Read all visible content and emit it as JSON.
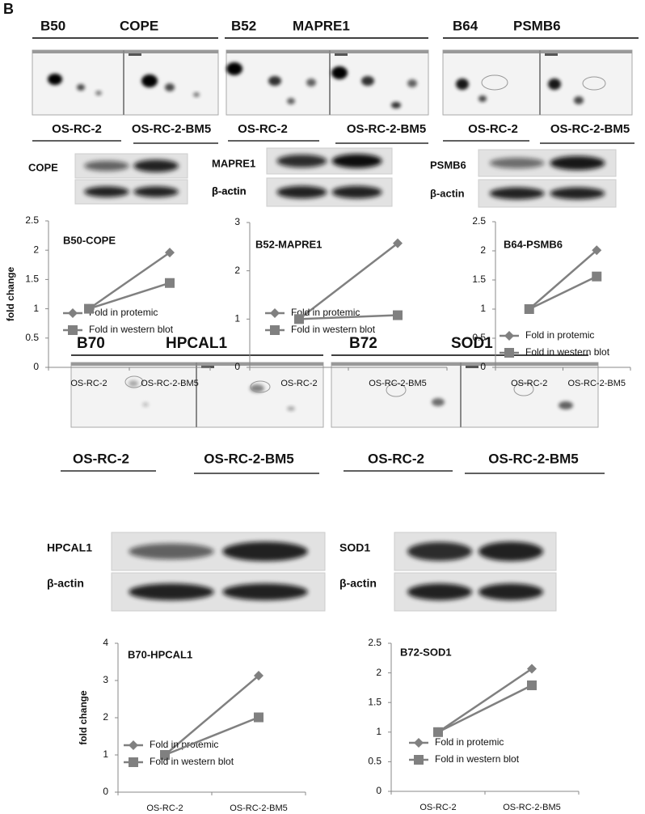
{
  "panel_label": "B",
  "panels": [
    {
      "spot": "B50",
      "protein": "COPE",
      "lanes": [
        "OS-RC-2",
        "OS-RC-2-BM5"
      ],
      "blot_labels": [
        "COPE",
        "β-actin"
      ]
    },
    {
      "spot": "B52",
      "protein": "MAPRE1",
      "lanes": [
        "OS-RC-2",
        "OS-RC-2-BM5"
      ],
      "blot_labels": [
        "MAPRE1",
        "β-actin"
      ]
    },
    {
      "spot": "B64",
      "protein": "PSMB6",
      "lanes": [
        "OS-RC-2",
        "OS-RC-2-BM5"
      ],
      "blot_labels": [
        "PSMB6",
        "β-actin"
      ]
    },
    {
      "spot": "B70",
      "protein": "HPCAL1",
      "lanes": [
        "OS-RC-2",
        "OS-RC-2-BM5"
      ],
      "blot_labels": [
        "HPCAL1",
        "β-actin"
      ]
    },
    {
      "spot": "B72",
      "protein": "SOD1",
      "lanes": [
        "OS-RC-2",
        "OS-RC-2-BM5"
      ],
      "blot_labels": [
        "SOD1",
        "β-actin"
      ]
    }
  ],
  "chart_data": [
    {
      "type": "line",
      "title": "B50-COPE",
      "y_label": "fold change",
      "categories": [
        "OS-RC-2",
        "OS-RC-2-BM5"
      ],
      "series": [
        {
          "name": "Fold in protemic",
          "color": "#808080",
          "marker": "diamond",
          "values": [
            1,
            1.96
          ]
        },
        {
          "name": "Fold in western blot",
          "color": "#808080",
          "marker": "square",
          "values": [
            1,
            1.44
          ]
        }
      ],
      "ylim": [
        0,
        2.5
      ],
      "yticks": [
        0,
        0.5,
        1,
        1.5,
        2,
        2.5
      ],
      "legend": "lower left"
    },
    {
      "type": "line",
      "title": "B52-MAPRE1",
      "categories": [
        "OS-RC-2",
        "OS-RC-2-BM5"
      ],
      "series": [
        {
          "name": "Fold in protemic",
          "color": "#808080",
          "marker": "diamond",
          "values": [
            1,
            2.57
          ]
        },
        {
          "name": "Fold in western blot",
          "color": "#808080",
          "marker": "square",
          "values": [
            1,
            1.08
          ]
        }
      ],
      "ylim": [
        0,
        3
      ],
      "yticks": [
        0,
        1,
        2,
        3
      ],
      "legend": "lower left"
    },
    {
      "type": "line",
      "title": "B64-PSMB6",
      "categories": [
        "OS-RC-2",
        "OS-RC-2-BM5"
      ],
      "series": [
        {
          "name": "Fold in protemic",
          "color": "#808080",
          "marker": "diamond",
          "values": [
            1,
            2.01
          ]
        },
        {
          "name": "Fold in western blot",
          "color": "#808080",
          "marker": "square",
          "values": [
            1,
            1.56
          ]
        }
      ],
      "ylim": [
        0,
        2.5
      ],
      "yticks": [
        0,
        0.5,
        1,
        1.5,
        2,
        2.5
      ],
      "legend": "lower left"
    },
    {
      "type": "line",
      "title": "B70-HPCAL1",
      "y_label": "fold change",
      "categories": [
        "OS-RC-2",
        "OS-RC-2-BM5"
      ],
      "series": [
        {
          "name": "Fold in protemic",
          "color": "#808080",
          "marker": "diamond",
          "values": [
            1,
            3.13
          ]
        },
        {
          "name": "Fold in western blot",
          "color": "#808080",
          "marker": "square",
          "values": [
            1,
            2.01
          ]
        }
      ],
      "ylim": [
        0,
        4
      ],
      "yticks": [
        0,
        1,
        2,
        3,
        4
      ],
      "legend": "lower left"
    },
    {
      "type": "line",
      "title": "B72-SOD1",
      "categories": [
        "OS-RC-2",
        "OS-RC-2-BM5"
      ],
      "series": [
        {
          "name": "Fold in protemic",
          "color": "#808080",
          "marker": "diamond",
          "values": [
            1,
            2.07
          ]
        },
        {
          "name": "Fold in western blot",
          "color": "#808080",
          "marker": "square",
          "values": [
            1,
            1.79
          ]
        }
      ],
      "ylim": [
        0,
        2.5
      ],
      "yticks": [
        0,
        0.5,
        1,
        1.5,
        2,
        2.5
      ],
      "legend": "lower left"
    }
  ]
}
